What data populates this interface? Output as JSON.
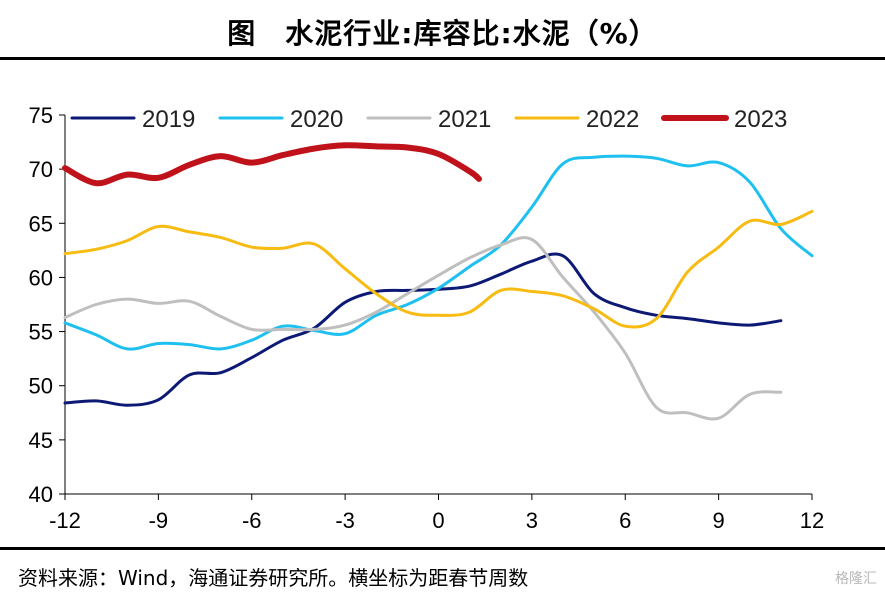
{
  "title": "图　水泥行业:库容比:水泥（%）",
  "source": "资料来源：Wind，海通证券研究所。横坐标为距春节周数",
  "watermark": "格隆汇",
  "chart_data": {
    "type": "line",
    "xlim": [
      -12,
      12
    ],
    "ylim": [
      40,
      75
    ],
    "xticks": [
      -12,
      -9,
      -6,
      -3,
      0,
      3,
      6,
      9,
      12
    ],
    "yticks": [
      40,
      45,
      50,
      55,
      60,
      65,
      70,
      75
    ],
    "grid": false,
    "legend": "top",
    "series": [
      {
        "name": "2019",
        "color": "#0d1a75",
        "width": 3,
        "x": [
          -12,
          -11,
          -10,
          -9,
          -8,
          -7,
          -6,
          -5,
          -4,
          -3,
          -2,
          -1,
          0,
          1,
          2,
          3,
          4,
          5,
          6,
          7,
          8,
          9,
          10,
          11
        ],
        "y": [
          48.4,
          48.6,
          48.2,
          48.7,
          51.0,
          51.2,
          52.6,
          54.2,
          55.3,
          57.7,
          58.7,
          58.8,
          58.9,
          59.2,
          60.3,
          61.5,
          62.0,
          58.5,
          57.2,
          56.5,
          56.2,
          55.8,
          55.6,
          56.0
        ]
      },
      {
        "name": "2020",
        "color": "#1ec0f0",
        "width": 3,
        "x": [
          -12,
          -11,
          -10,
          -9,
          -8,
          -7,
          -6,
          -5,
          -4,
          -3,
          -2,
          -1,
          0,
          1,
          2,
          3,
          4,
          5,
          6,
          7,
          8,
          9,
          10,
          11,
          12
        ],
        "y": [
          55.8,
          54.7,
          53.4,
          53.9,
          53.8,
          53.4,
          54.2,
          55.5,
          55.1,
          54.8,
          56.5,
          57.5,
          59.0,
          61.0,
          63.0,
          66.5,
          70.5,
          71.1,
          71.2,
          71.0,
          70.3,
          70.6,
          68.8,
          64.5,
          62.0
        ]
      },
      {
        "name": "2021",
        "color": "#bfbfbf",
        "width": 3,
        "x": [
          -12,
          -11,
          -10,
          -9,
          -8,
          -7,
          -6,
          -5,
          -4,
          -3,
          -2,
          -1,
          0,
          1,
          2,
          3,
          4,
          5,
          6,
          7,
          8,
          9,
          10,
          11
        ],
        "y": [
          56.3,
          57.5,
          58.0,
          57.6,
          57.8,
          56.4,
          55.2,
          55.2,
          55.2,
          55.6,
          56.8,
          58.5,
          60.2,
          61.8,
          63.0,
          63.5,
          60.0,
          56.8,
          53.0,
          48.0,
          47.5,
          47.0,
          49.2,
          49.4
        ]
      },
      {
        "name": "2022",
        "color": "#f7bb12",
        "width": 3,
        "x": [
          -12,
          -11,
          -10,
          -9,
          -8,
          -7,
          -6,
          -5,
          -4,
          -3,
          -2,
          -1,
          0,
          1,
          2,
          3,
          4,
          5,
          6,
          7,
          8,
          9,
          10,
          11,
          12
        ],
        "y": [
          62.2,
          62.6,
          63.4,
          64.7,
          64.2,
          63.7,
          62.8,
          62.7,
          63.1,
          60.8,
          58.5,
          56.8,
          56.5,
          56.8,
          58.8,
          58.7,
          58.3,
          57.1,
          55.5,
          56.2,
          60.5,
          62.8,
          65.2,
          64.9,
          66.1
        ]
      },
      {
        "name": "2023",
        "color": "#c0121b",
        "width": 6,
        "x": [
          -12,
          -11,
          -10,
          -9,
          -8,
          -7,
          -6,
          -5,
          -4,
          -3,
          -2,
          -1,
          0,
          1,
          1.3
        ],
        "y": [
          70.1,
          68.7,
          69.5,
          69.2,
          70.4,
          71.2,
          70.6,
          71.3,
          71.9,
          72.2,
          72.1,
          72.0,
          71.4,
          69.8,
          69.1
        ]
      }
    ]
  }
}
